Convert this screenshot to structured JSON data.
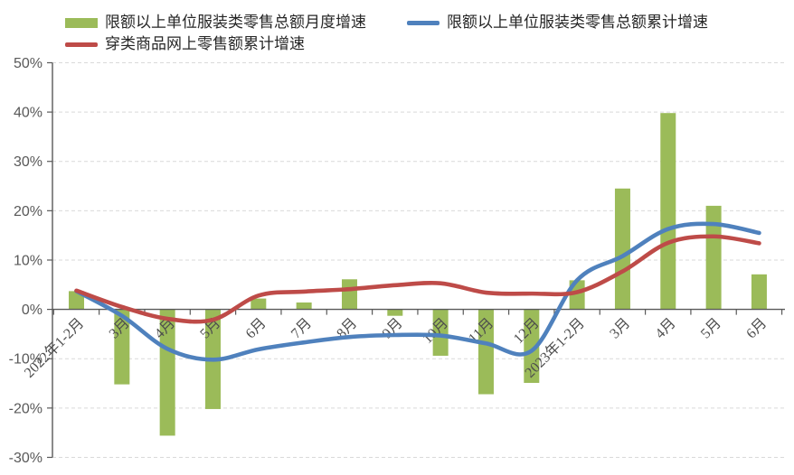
{
  "legend": {
    "items": [
      {
        "label": "限额以上单位服装类零售总额月度增速",
        "swatch": "bar",
        "color": "#9bbb59"
      },
      {
        "label": "限额以上单位服装类零售总额累计增速",
        "swatch": "line",
        "color": "#4f81bd"
      },
      {
        "label": "穿类商品网上零售额累计增速",
        "swatch": "line",
        "color": "#be4b48"
      }
    ]
  },
  "chart_data": {
    "type": "combo (bar + smoothed lines)",
    "title": "",
    "xlabel": "",
    "ylabel": "",
    "categories": [
      "2022年1-2月",
      "3月",
      "4月",
      "5月",
      "6月",
      "7月",
      "8月",
      "9月",
      "10月",
      "11月",
      "12月",
      "2023年1-2月",
      "3月",
      "4月",
      "5月",
      "6月"
    ],
    "series": [
      {
        "name": "限额以上单位服装类零售总额月度增速",
        "type": "bar",
        "color": "#9bbb59",
        "values": [
          3.7,
          -15.2,
          -25.6,
          -20.2,
          2.2,
          1.4,
          6.1,
          -1.3,
          -9.4,
          -17.2,
          -14.9,
          5.9,
          24.5,
          39.8,
          21.0,
          7.1
        ]
      },
      {
        "name": "限额以上单位服装类零售总额累计增速",
        "type": "line",
        "color": "#4f81bd",
        "values": [
          3.7,
          -1.3,
          -8.0,
          -10.2,
          -8.1,
          -6.7,
          -5.6,
          -5.2,
          -5.3,
          -6.9,
          -8.4,
          5.9,
          10.8,
          16.3,
          17.3,
          15.5
        ]
      },
      {
        "name": "穿类商品网上零售额累计增速",
        "type": "line",
        "color": "#be4b48",
        "values": [
          3.8,
          0.5,
          -1.9,
          -2.1,
          2.8,
          3.6,
          4.1,
          4.9,
          5.3,
          3.4,
          3.2,
          3.5,
          7.7,
          13.5,
          14.8,
          13.4
        ]
      }
    ],
    "y_axis": {
      "min": -30,
      "max": 50,
      "step": 10,
      "unit": "%",
      "tick_labels": [
        "50%",
        "40%",
        "30%",
        "20%",
        "10%",
        "0%",
        "-10%",
        "-20%",
        "-30%"
      ]
    },
    "x_axis": {
      "label_rotation_deg": -45
    },
    "grid": "dashed horizontal lines every 10%",
    "legend_position": "top",
    "style": {
      "grid_color": "#d9d9d9",
      "axis_color": "#595959",
      "axis_text_color": "#595959",
      "x_text_color": "#4d4d4d"
    }
  }
}
